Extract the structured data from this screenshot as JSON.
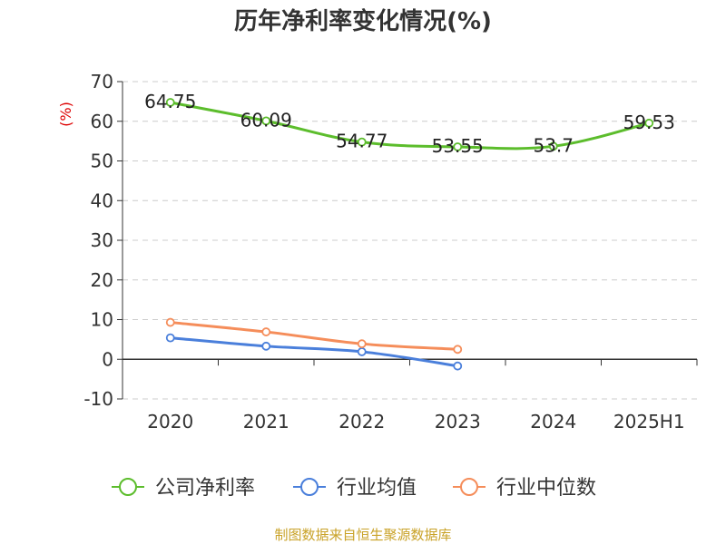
{
  "chart_data": {
    "type": "line",
    "title": "历年净利率变化情况(%)",
    "ylabel": "(%)",
    "categories": [
      "2020",
      "2021",
      "2022",
      "2023",
      "2024",
      "2025H1"
    ],
    "ylim": [
      -10,
      70
    ],
    "yticks": [
      -10,
      0,
      10,
      20,
      30,
      40,
      50,
      60,
      70
    ],
    "ytick_labels": [
      "-10",
      "0",
      "10",
      "20",
      "30",
      "40",
      "50",
      "60",
      "70"
    ],
    "grid": true,
    "legend_position": "bottom",
    "series": [
      {
        "name": "公司净利率",
        "color": "#5cbd2c",
        "values": [
          64.75,
          60.09,
          54.77,
          53.55,
          53.7,
          59.53
        ],
        "labels": [
          "64.75",
          "60.09",
          "54.77",
          "53.55",
          "53.7",
          "59.53"
        ]
      },
      {
        "name": "行业均值",
        "color": "#4a7fdb",
        "values": [
          5.4,
          3.3,
          1.9,
          -1.7,
          null,
          null
        ]
      },
      {
        "name": "行业中位数",
        "color": "#f58d5a",
        "values": [
          9.3,
          6.9,
          3.9,
          2.5,
          null,
          null
        ]
      }
    ]
  },
  "footer": {
    "source": "制图数据来自恒生聚源数据库"
  }
}
